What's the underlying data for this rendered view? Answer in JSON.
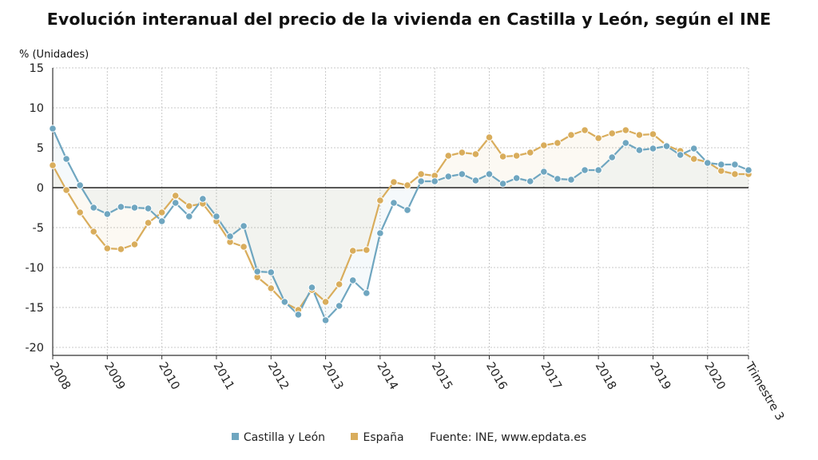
{
  "title": "Evolución interanual del precio de la vivienda en Castilla y León, según el INE",
  "source": "Fuente: INE, www.epdata.es",
  "colors": {
    "castilla": "#6fa6c0",
    "espana": "#d9ad5c",
    "zero_line": "#222222",
    "grid": "#c8c8c8"
  },
  "chart_data": {
    "type": "line",
    "ylabel": "% (Unidades)",
    "ylim": [
      -21,
      15
    ],
    "yticks": [
      15,
      10,
      5,
      0,
      -5,
      -10,
      -15,
      -20
    ],
    "x_tick_labels": [
      "2008",
      "2009",
      "2010",
      "2011",
      "2012",
      "2013",
      "2014",
      "2015",
      "2016",
      "2017",
      "2018",
      "2019",
      "2020",
      "Trimestre 3"
    ],
    "grid": true,
    "legend_position": "bottom",
    "series": [
      {
        "name": "Castilla y León",
        "values": [
          7.4,
          3.6,
          0.3,
          -2.5,
          -3.3,
          -2.4,
          -2.5,
          -2.6,
          -4.2,
          -1.9,
          -3.6,
          -1.4,
          -3.6,
          -6.1,
          -4.8,
          -10.5,
          -10.6,
          -14.3,
          -15.9,
          -12.5,
          -16.6,
          -14.8,
          -11.6,
          -13.2,
          -5.7,
          -1.9,
          -2.8,
          0.8,
          0.8,
          1.4,
          1.7,
          0.9,
          1.7,
          0.5,
          1.2,
          0.8,
          2.0,
          1.1,
          1.0,
          2.2,
          2.2,
          3.8,
          5.6,
          4.7,
          4.9,
          5.2,
          4.1,
          4.9,
          3.1,
          2.9,
          2.9,
          2.2
        ]
      },
      {
        "name": "España",
        "values": [
          2.8,
          -0.3,
          -3.1,
          -5.5,
          -7.6,
          -7.7,
          -7.1,
          -4.4,
          -3.1,
          -1.0,
          -2.3,
          -2.0,
          -4.2,
          -6.8,
          -7.4,
          -11.2,
          -12.6,
          -14.4,
          -15.3,
          -12.8,
          -14.3,
          -12.1,
          -7.9,
          -7.8,
          -1.6,
          0.7,
          0.3,
          1.7,
          1.5,
          4.0,
          4.4,
          4.2,
          6.3,
          3.9,
          4.0,
          4.4,
          5.3,
          5.6,
          6.6,
          7.2,
          6.2,
          6.8,
          7.2,
          6.6,
          6.7,
          5.3,
          4.6,
          3.6,
          3.2,
          2.1,
          1.7,
          1.7
        ]
      }
    ]
  }
}
